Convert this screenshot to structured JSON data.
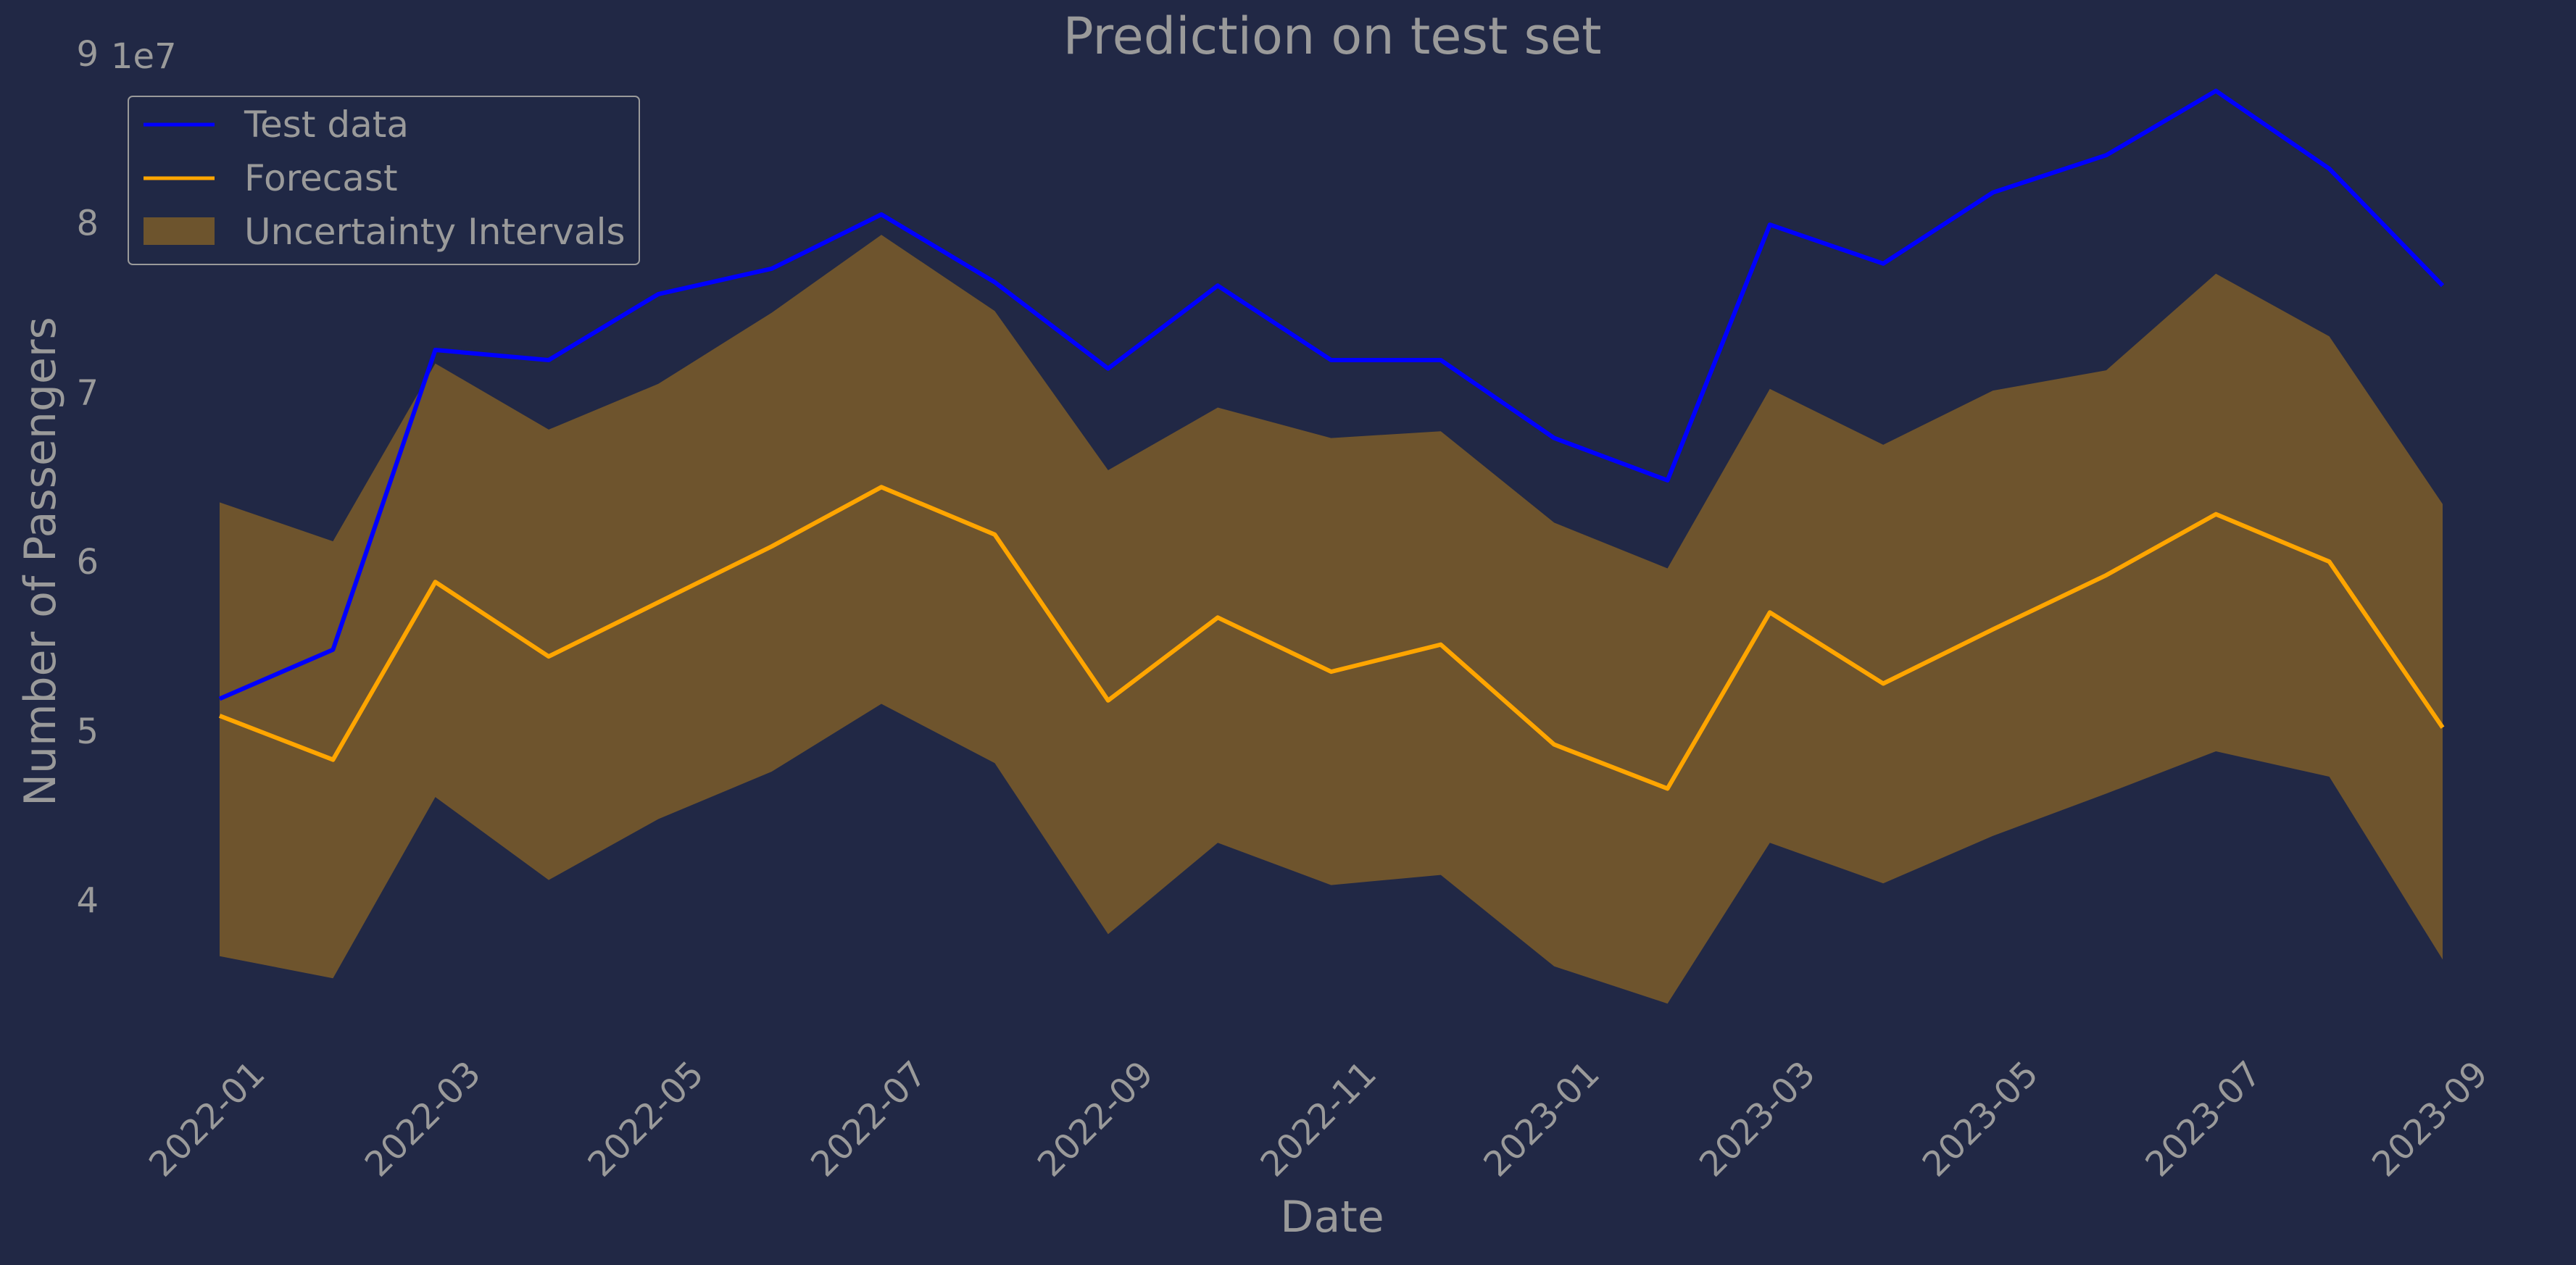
{
  "chart_data": {
    "type": "line",
    "title": "Prediction on test set",
    "xlabel": "Date",
    "ylabel": "Number of Passengers",
    "y_offset_label": "1e7",
    "ylim": [
      31000000,
      90000000
    ],
    "xlim": [
      "2021-12-31",
      "2023-08-31"
    ],
    "yticks": [
      4,
      5,
      6,
      7,
      8,
      9
    ],
    "ytick_scale": 10000000,
    "xticks": [
      "2022-01",
      "2022-03",
      "2022-05",
      "2022-07",
      "2022-09",
      "2022-11",
      "2023-01",
      "2023-03",
      "2023-05",
      "2023-07",
      "2023-09"
    ],
    "x": [
      "2021-12-31",
      "2022-01-31",
      "2022-02-28",
      "2022-03-31",
      "2022-04-30",
      "2022-05-31",
      "2022-06-30",
      "2022-07-31",
      "2022-08-31",
      "2022-09-30",
      "2022-10-31",
      "2022-11-30",
      "2022-12-31",
      "2023-01-31",
      "2023-02-28",
      "2023-03-31",
      "2023-04-30",
      "2023-05-31",
      "2023-06-30",
      "2023-07-31",
      "2023-08-31"
    ],
    "series": [
      {
        "name": "Test data",
        "color": "#0000ff",
        "values": [
          51900000,
          54800000,
          72500000,
          71900000,
          75800000,
          77300000,
          80500000,
          76500000,
          71400000,
          76300000,
          71900000,
          71900000,
          67300000,
          64800000,
          79900000,
          77600000,
          81800000,
          84000000,
          87800000,
          83200000,
          76300000
        ]
      },
      {
        "name": "Forecast",
        "color": "#ffa500",
        "values": [
          50900000,
          48300000,
          58800000,
          54400000,
          57600000,
          60900000,
          64400000,
          61600000,
          51800000,
          56700000,
          53500000,
          55100000,
          49200000,
          46600000,
          57000000,
          52800000,
          56000000,
          59200000,
          62800000,
          60000000,
          50200000
        ]
      }
    ],
    "interval": {
      "name": "Uncertainty Intervals",
      "color": "#ffa500",
      "lower": [
        36700000,
        35400000,
        46100000,
        41200000,
        44800000,
        47600000,
        51600000,
        48100000,
        38000000,
        43400000,
        40900000,
        41500000,
        36100000,
        33900000,
        43400000,
        41000000,
        43800000,
        46300000,
        48800000,
        47300000,
        36500000
      ],
      "upper": [
        63500000,
        61200000,
        71700000,
        67800000,
        70500000,
        74700000,
        79300000,
        74800000,
        65400000,
        69100000,
        67300000,
        67700000,
        62300000,
        59600000,
        70200000,
        66900000,
        70100000,
        71300000,
        77000000,
        73300000,
        63400000
      ]
    },
    "legend": "top-left",
    "grid": false
  }
}
